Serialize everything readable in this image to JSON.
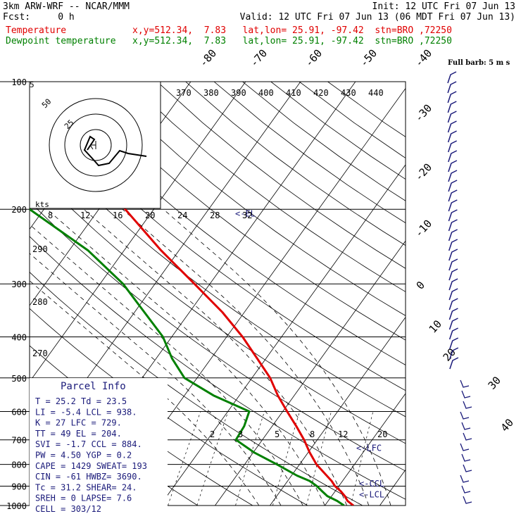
{
  "header": {
    "model": "3km ARW-WRF -- NCAR/MMM",
    "init": "Init: 12 UTC Fri 07 Jun 13",
    "fcst": "Fcst:     0 h",
    "valid": "Valid: 12 UTC Fri 07 Jun 13 (06 MDT Fri 07 Jun 13)",
    "temp_line": "Temperature            x,y=512.34,  7.83   lat,lon= 25.91, -97.42  stn=BRO ,72250",
    "dew_line": "Dewpoint temperature   x,y=512.34,  7.83   lat,lon= 25.91, -97.42  stn=BRO ,72250"
  },
  "colors": {
    "temperature": "#e00000",
    "dewpoint": "#008000",
    "wind": "#1a1a7a",
    "grid": "#000000"
  },
  "chart_data": {
    "type": "line",
    "title": "Skew-T log-P sounding",
    "pressure_levels": [
      100,
      200,
      300,
      400,
      500,
      600,
      700,
      800,
      900,
      1000
    ],
    "isotherm_labels": [
      "-80",
      "-70",
      "-60",
      "-50",
      "-40",
      "-30",
      "-20",
      "-10",
      "0",
      "10",
      "20",
      "30",
      "40"
    ],
    "theta_labels": [
      "370",
      "380",
      "390",
      "400",
      "410",
      "420",
      "430",
      "440"
    ],
    "mixing_ratio_labels": [
      "2",
      "3",
      "5",
      "8",
      "12",
      "20"
    ],
    "left_labels": [
      "290",
      "280",
      "270"
    ],
    "series": [
      {
        "name": "Temperature",
        "points": [
          [
            1000,
            25.2
          ],
          [
            975,
            23.5
          ],
          [
            950,
            22.4
          ],
          [
            925,
            21.0
          ],
          [
            900,
            19.3
          ],
          [
            875,
            18.0
          ],
          [
            850,
            16.4
          ],
          [
            800,
            13.1
          ],
          [
            750,
            10.3
          ],
          [
            700,
            7.6
          ],
          [
            650,
            4.4
          ],
          [
            600,
            0.8
          ],
          [
            550,
            -3.0
          ],
          [
            500,
            -6.7
          ],
          [
            450,
            -11.6
          ],
          [
            400,
            -17.1
          ],
          [
            350,
            -24.0
          ],
          [
            300,
            -32.8
          ],
          [
            250,
            -43.3
          ],
          [
            200,
            -55.2
          ],
          [
            175,
            -61.5
          ],
          [
            150,
            -67.0
          ],
          [
            125,
            -72.2
          ],
          [
            110,
            -73.5
          ],
          [
            100,
            -73.0
          ]
        ]
      },
      {
        "name": "Dewpoint temperature",
        "points": [
          [
            1000,
            23.5
          ],
          [
            975,
            21.6
          ],
          [
            950,
            19.2
          ],
          [
            925,
            17.6
          ],
          [
            900,
            16.0
          ],
          [
            875,
            14.0
          ],
          [
            850,
            11.0
          ],
          [
            800,
            5.9
          ],
          [
            750,
            0.2
          ],
          [
            700,
            -4.8
          ],
          [
            650,
            -5.1
          ],
          [
            600,
            -6.1
          ],
          [
            550,
            -14.7
          ],
          [
            500,
            -22.3
          ],
          [
            450,
            -27.1
          ],
          [
            400,
            -31.6
          ],
          [
            350,
            -38.2
          ],
          [
            300,
            -45.8
          ],
          [
            250,
            -56.6
          ],
          [
            200,
            -72.6
          ],
          [
            175,
            -74.5
          ],
          [
            150,
            -78.0
          ],
          [
            125,
            -80.5
          ],
          [
            100,
            -82.0
          ]
        ]
      }
    ],
    "markers": [
      {
        "label": "<-EL",
        "pressure": 204
      },
      {
        "label": "<-LFC",
        "pressure": 729
      },
      {
        "label": "<-CCL",
        "pressure": 884
      },
      {
        "label": "<-LCL",
        "pressure": 938
      }
    ],
    "hodograph": {
      "unit": "kts",
      "ring_labels": [
        "25",
        "50",
        "5"
      ],
      "speed_scale": [
        "8",
        "12",
        "16",
        "20",
        "24",
        "28",
        "32"
      ]
    },
    "wind_header": "Full barb: 5 m s",
    "parcel_info": {
      "title": "Parcel Info",
      "rows": [
        "T  =   25.2  Td =  23.5",
        "LI =   -5.4  LCL =  938.",
        "K  =     27  LFC =  729.",
        "TT =     49  EL  =  204.",
        "SVI =  -1.7  CCL =  884.",
        "PW =   4.50  YGP =   0.2",
        "CAPE =  1429  SWEAT=  193",
        "CIN =    -61  HWBZ= 3690.",
        "Tc =   31.2  SHEAR=  24.",
        "SREH =     0  LAPSE=  7.6",
        "CELL = 303/12"
      ]
    }
  }
}
